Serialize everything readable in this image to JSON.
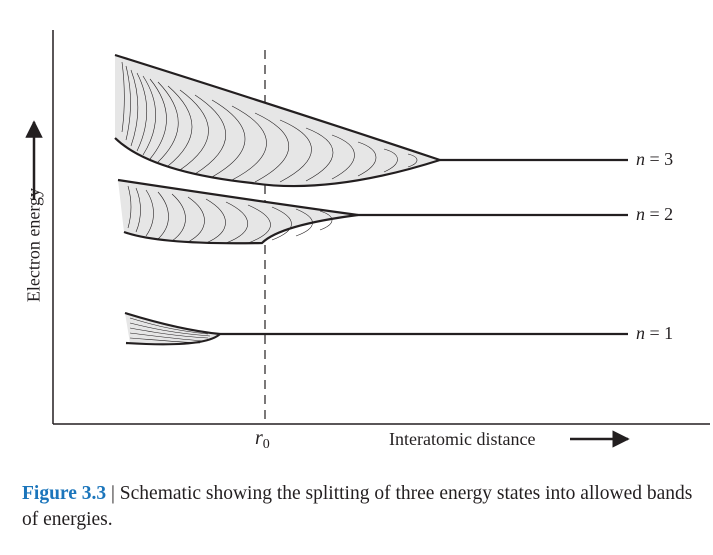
{
  "diagram": {
    "y_axis_label": "Electron energy",
    "x_axis_label": "Interatomic distance",
    "equilibrium_label": {
      "symbol": "r",
      "subscript": "0"
    },
    "energy_levels": [
      {
        "variable": "n",
        "relation": "=",
        "value": "3"
      },
      {
        "variable": "n",
        "relation": "=",
        "value": "2"
      },
      {
        "variable": "n",
        "relation": "=",
        "value": "1"
      }
    ]
  },
  "caption": {
    "label": "Figure 3.3",
    "separator": " | ",
    "text": "Schematic showing the splitting of three energy states into allowed bands of energies."
  },
  "colors": {
    "line": "#231f20",
    "band_fill": "#e6e6e6",
    "caption_label": "#1b75bb"
  }
}
